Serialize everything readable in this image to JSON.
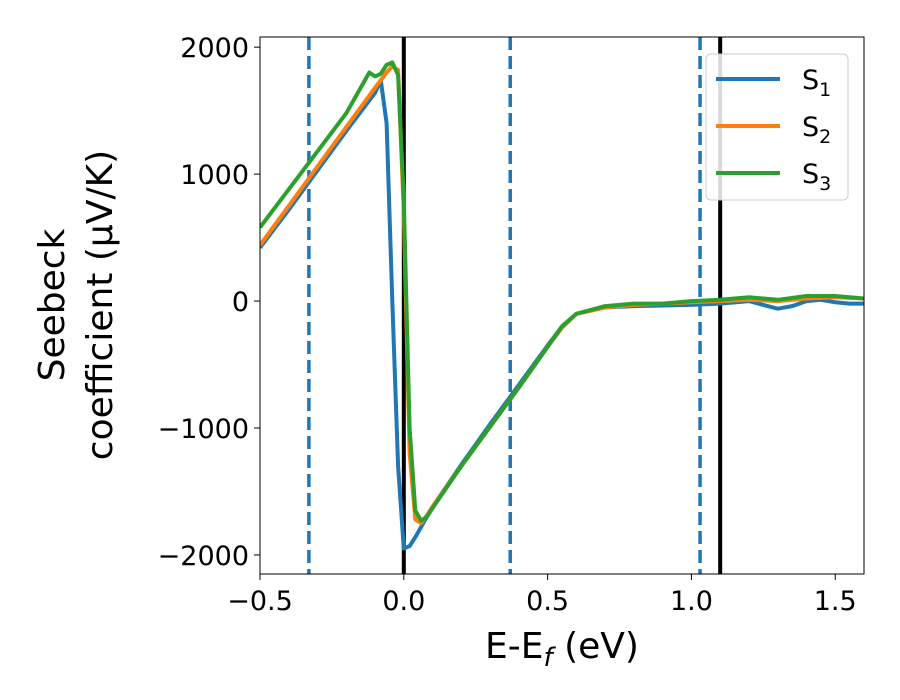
{
  "chart_data": {
    "type": "line",
    "xlabel": "E-E_f (eV)",
    "ylabel_line1": "Seebeck",
    "ylabel_line2": "coefficient  (μV/K)",
    "xlim": [
      -0.5,
      1.6
    ],
    "ylim": [
      -2150,
      2080
    ],
    "x_ticks": [
      -0.5,
      0.0,
      0.5,
      1.0,
      1.5
    ],
    "x_tick_labels": [
      "−0.5",
      "0.0",
      "0.5",
      "1.0",
      "1.5"
    ],
    "y_ticks": [
      -2000,
      -1000,
      0,
      1000,
      2000
    ],
    "y_tick_labels": [
      "−2000",
      "−1000",
      "0",
      "1000",
      "2000"
    ],
    "grid": false,
    "legend_position": "top-right",
    "vlines": [
      {
        "x": -0.33,
        "style": "dashed",
        "color": "#1f77b4"
      },
      {
        "x": 0.0,
        "style": "solid",
        "color": "#000000"
      },
      {
        "x": 0.37,
        "style": "dashed",
        "color": "#1f77b4"
      },
      {
        "x": 1.03,
        "style": "dashed",
        "color": "#1f77b4"
      },
      {
        "x": 1.1,
        "style": "solid",
        "color": "#000000"
      }
    ],
    "series": [
      {
        "name": "S",
        "subscript": "1",
        "color": "#1f77b4",
        "x": [
          -0.5,
          -0.4,
          -0.3,
          -0.2,
          -0.1,
          -0.08,
          -0.06,
          -0.04,
          -0.02,
          0.0,
          0.02,
          0.04,
          0.06,
          0.08,
          0.1,
          0.2,
          0.3,
          0.4,
          0.5,
          0.55,
          0.6,
          0.7,
          0.8,
          0.9,
          1.0,
          1.1,
          1.2,
          1.25,
          1.3,
          1.35,
          1.4,
          1.45,
          1.5,
          1.55,
          1.6
        ],
        "y": [
          420,
          720,
          1030,
          1340,
          1640,
          1740,
          1400,
          0,
          -1300,
          -1950,
          -1930,
          -1860,
          -1780,
          -1700,
          -1620,
          -1290,
          -970,
          -660,
          -350,
          -200,
          -100,
          -50,
          -40,
          -35,
          -30,
          -20,
          0,
          -30,
          -60,
          -40,
          0,
          10,
          -10,
          -20,
          -20
        ]
      },
      {
        "name": "S",
        "subscript": "2",
        "color": "#ff7f0e",
        "x": [
          -0.5,
          -0.4,
          -0.3,
          -0.2,
          -0.1,
          -0.06,
          -0.04,
          -0.02,
          0.0,
          0.02,
          0.04,
          0.06,
          0.08,
          0.1,
          0.2,
          0.3,
          0.4,
          0.5,
          0.55,
          0.6,
          0.7,
          0.8,
          0.9,
          1.0,
          1.1,
          1.2,
          1.3,
          1.4,
          1.5,
          1.6
        ],
        "y": [
          440,
          750,
          1060,
          1370,
          1680,
          1800,
          1850,
          1820,
          700,
          -1200,
          -1720,
          -1750,
          -1690,
          -1620,
          -1300,
          -990,
          -680,
          -360,
          -210,
          -100,
          -50,
          -30,
          -20,
          -10,
          0,
          10,
          0,
          20,
          30,
          20
        ]
      },
      {
        "name": "S",
        "subscript": "3",
        "color": "#2ca02c",
        "x": [
          -0.5,
          -0.4,
          -0.3,
          -0.2,
          -0.12,
          -0.1,
          -0.08,
          -0.06,
          -0.04,
          -0.02,
          0.0,
          0.02,
          0.04,
          0.06,
          0.08,
          0.1,
          0.2,
          0.3,
          0.4,
          0.5,
          0.55,
          0.6,
          0.7,
          0.8,
          0.9,
          1.0,
          1.1,
          1.2,
          1.3,
          1.4,
          1.5,
          1.6
        ],
        "y": [
          580,
          880,
          1180,
          1480,
          1800,
          1770,
          1790,
          1860,
          1880,
          1780,
          800,
          -1000,
          -1650,
          -1730,
          -1700,
          -1630,
          -1300,
          -990,
          -680,
          -360,
          -200,
          -100,
          -40,
          -20,
          -20,
          0,
          10,
          30,
          10,
          40,
          40,
          20
        ]
      }
    ]
  }
}
